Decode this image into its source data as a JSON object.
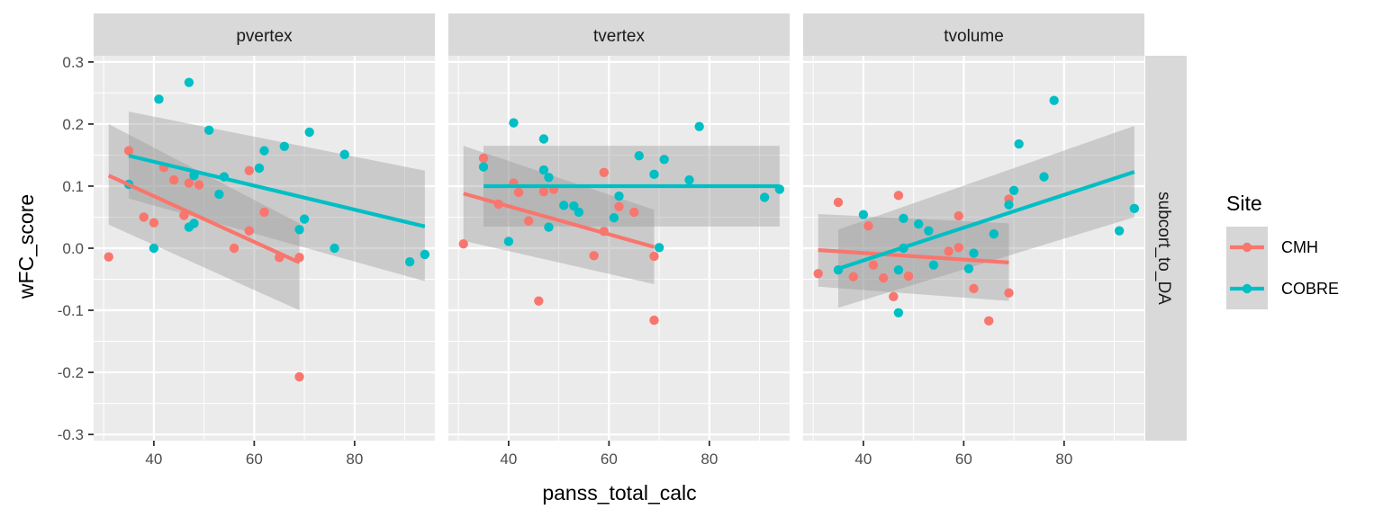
{
  "chart_data": {
    "type": "scatter",
    "title": "",
    "xlabel": "panss_total_calc",
    "ylabel": "wFC_score",
    "xlim": [
      28,
      96
    ],
    "ylim": [
      -0.31,
      0.31
    ],
    "x_ticks": [
      40,
      60,
      80
    ],
    "y_ticks": [
      -0.3,
      -0.2,
      -0.1,
      0.0,
      0.1,
      0.2,
      0.3
    ],
    "y_tick_labels": [
      "-0.3",
      "-0.2",
      "-0.1",
      "0.0",
      "0.1",
      "0.2",
      "0.3"
    ],
    "facet_cols": [
      "pvertex",
      "tvertex",
      "tvolume"
    ],
    "facet_row": "subcort_to_DA",
    "legend": {
      "title": "Site",
      "position": "right"
    },
    "grid": true,
    "series": [
      {
        "name": "CMH",
        "color": "#F8766D"
      },
      {
        "name": "COBRE",
        "color": "#00BFC4"
      }
    ],
    "panels": [
      {
        "facet": "pvertex",
        "points": {
          "CMH": [
            [
              31,
              -0.014
            ],
            [
              35,
              0.157
            ],
            [
              38,
              0.05
            ],
            [
              40,
              0.041
            ],
            [
              42,
              0.13
            ],
            [
              44,
              0.11
            ],
            [
              46,
              0.053
            ],
            [
              47,
              0.105
            ],
            [
              49,
              0.102
            ],
            [
              56,
              0.0
            ],
            [
              59,
              0.125
            ],
            [
              59,
              0.028
            ],
            [
              62,
              0.058
            ],
            [
              65,
              -0.015
            ],
            [
              69,
              -0.015
            ],
            [
              69,
              -0.207
            ]
          ],
          "COBRE": [
            [
              35,
              0.103
            ],
            [
              40,
              0.0
            ],
            [
              41,
              0.24
            ],
            [
              47,
              0.267
            ],
            [
              47,
              0.034
            ],
            [
              48,
              0.04
            ],
            [
              48,
              0.117
            ],
            [
              51,
              0.19
            ],
            [
              53,
              0.087
            ],
            [
              54,
              0.115
            ],
            [
              61,
              0.129
            ],
            [
              62,
              0.157
            ],
            [
              66,
              0.164
            ],
            [
              69,
              0.03
            ],
            [
              70,
              0.047
            ],
            [
              71,
              0.187
            ],
            [
              76,
              0.0
            ],
            [
              78,
              0.151
            ],
            [
              91,
              -0.022
            ],
            [
              94,
              -0.01
            ]
          ]
        },
        "fits": {
          "CMH": {
            "x": [
              31,
              69
            ],
            "y": [
              0.117,
              -0.023
            ],
            "band_upper": [
              0.2,
              0.04
            ],
            "band_lower": [
              0.038,
              -0.1
            ]
          },
          "COBRE": {
            "x": [
              35,
              94
            ],
            "y": [
              0.149,
              0.035
            ],
            "band_upper": [
              0.22,
              0.125
            ],
            "band_lower": [
              0.08,
              -0.053
            ]
          }
        }
      },
      {
        "facet": "tvertex",
        "points": {
          "CMH": [
            [
              31,
              0.007
            ],
            [
              35,
              0.145
            ],
            [
              38,
              0.071
            ],
            [
              41,
              0.105
            ],
            [
              42,
              0.09
            ],
            [
              44,
              0.044
            ],
            [
              46,
              -0.085
            ],
            [
              47,
              0.091
            ],
            [
              49,
              0.095
            ],
            [
              57,
              -0.012
            ],
            [
              59,
              0.122
            ],
            [
              59,
              0.027
            ],
            [
              62,
              0.067
            ],
            [
              65,
              0.058
            ],
            [
              69,
              -0.013
            ],
            [
              69,
              -0.116
            ]
          ],
          "COBRE": [
            [
              35,
              0.131
            ],
            [
              40,
              0.011
            ],
            [
              41,
              0.202
            ],
            [
              47,
              0.176
            ],
            [
              47,
              0.126
            ],
            [
              48,
              0.114
            ],
            [
              48,
              0.034
            ],
            [
              51,
              0.069
            ],
            [
              53,
              0.068
            ],
            [
              54,
              0.058
            ],
            [
              61,
              0.049
            ],
            [
              62,
              0.084
            ],
            [
              66,
              0.149
            ],
            [
              69,
              0.119
            ],
            [
              70,
              0.001
            ],
            [
              71,
              0.143
            ],
            [
              76,
              0.11
            ],
            [
              78,
              0.196
            ],
            [
              91,
              0.082
            ],
            [
              94,
              0.095
            ]
          ]
        },
        "fits": {
          "CMH": {
            "x": [
              31,
              69
            ],
            "y": [
              0.088,
              0.002
            ],
            "band_upper": [
              0.165,
              0.062
            ],
            "band_lower": [
              0.012,
              -0.058
            ]
          },
          "COBRE": {
            "x": [
              35,
              94
            ],
            "y": [
              0.1,
              0.1
            ],
            "band_upper": [
              0.165,
              0.165
            ],
            "band_lower": [
              0.035,
              0.035
            ]
          }
        }
      },
      {
        "facet": "tvolume",
        "points": {
          "CMH": [
            [
              31,
              -0.041
            ],
            [
              35,
              0.074
            ],
            [
              38,
              -0.046
            ],
            [
              41,
              0.036
            ],
            [
              42,
              -0.027
            ],
            [
              44,
              -0.048
            ],
            [
              46,
              -0.078
            ],
            [
              47,
              0.085
            ],
            [
              49,
              -0.045
            ],
            [
              57,
              -0.005
            ],
            [
              59,
              0.052
            ],
            [
              59,
              0.001
            ],
            [
              62,
              -0.065
            ],
            [
              65,
              -0.117
            ],
            [
              69,
              0.079
            ],
            [
              69,
              -0.072
            ]
          ],
          "COBRE": [
            [
              35,
              -0.035
            ],
            [
              40,
              0.054
            ],
            [
              47,
              -0.035
            ],
            [
              47,
              -0.104
            ],
            [
              48,
              0.048
            ],
            [
              48,
              0.0
            ],
            [
              51,
              0.039
            ],
            [
              53,
              0.028
            ],
            [
              54,
              -0.027
            ],
            [
              61,
              -0.033
            ],
            [
              62,
              -0.008
            ],
            [
              66,
              0.023
            ],
            [
              69,
              0.07
            ],
            [
              70,
              0.093
            ],
            [
              71,
              0.168
            ],
            [
              76,
              0.115
            ],
            [
              78,
              0.238
            ],
            [
              91,
              0.028
            ],
            [
              94,
              0.064
            ]
          ]
        },
        "fits": {
          "CMH": {
            "x": [
              31,
              69
            ],
            "y": [
              -0.003,
              -0.023
            ],
            "band_upper": [
              0.055,
              0.04
            ],
            "band_lower": [
              -0.062,
              -0.085
            ]
          },
          "COBRE": {
            "x": [
              35,
              94
            ],
            "y": [
              -0.033,
              0.123
            ],
            "band_upper": [
              0.03,
              0.197
            ],
            "band_lower": [
              -0.096,
              0.05
            ]
          }
        }
      }
    ]
  }
}
